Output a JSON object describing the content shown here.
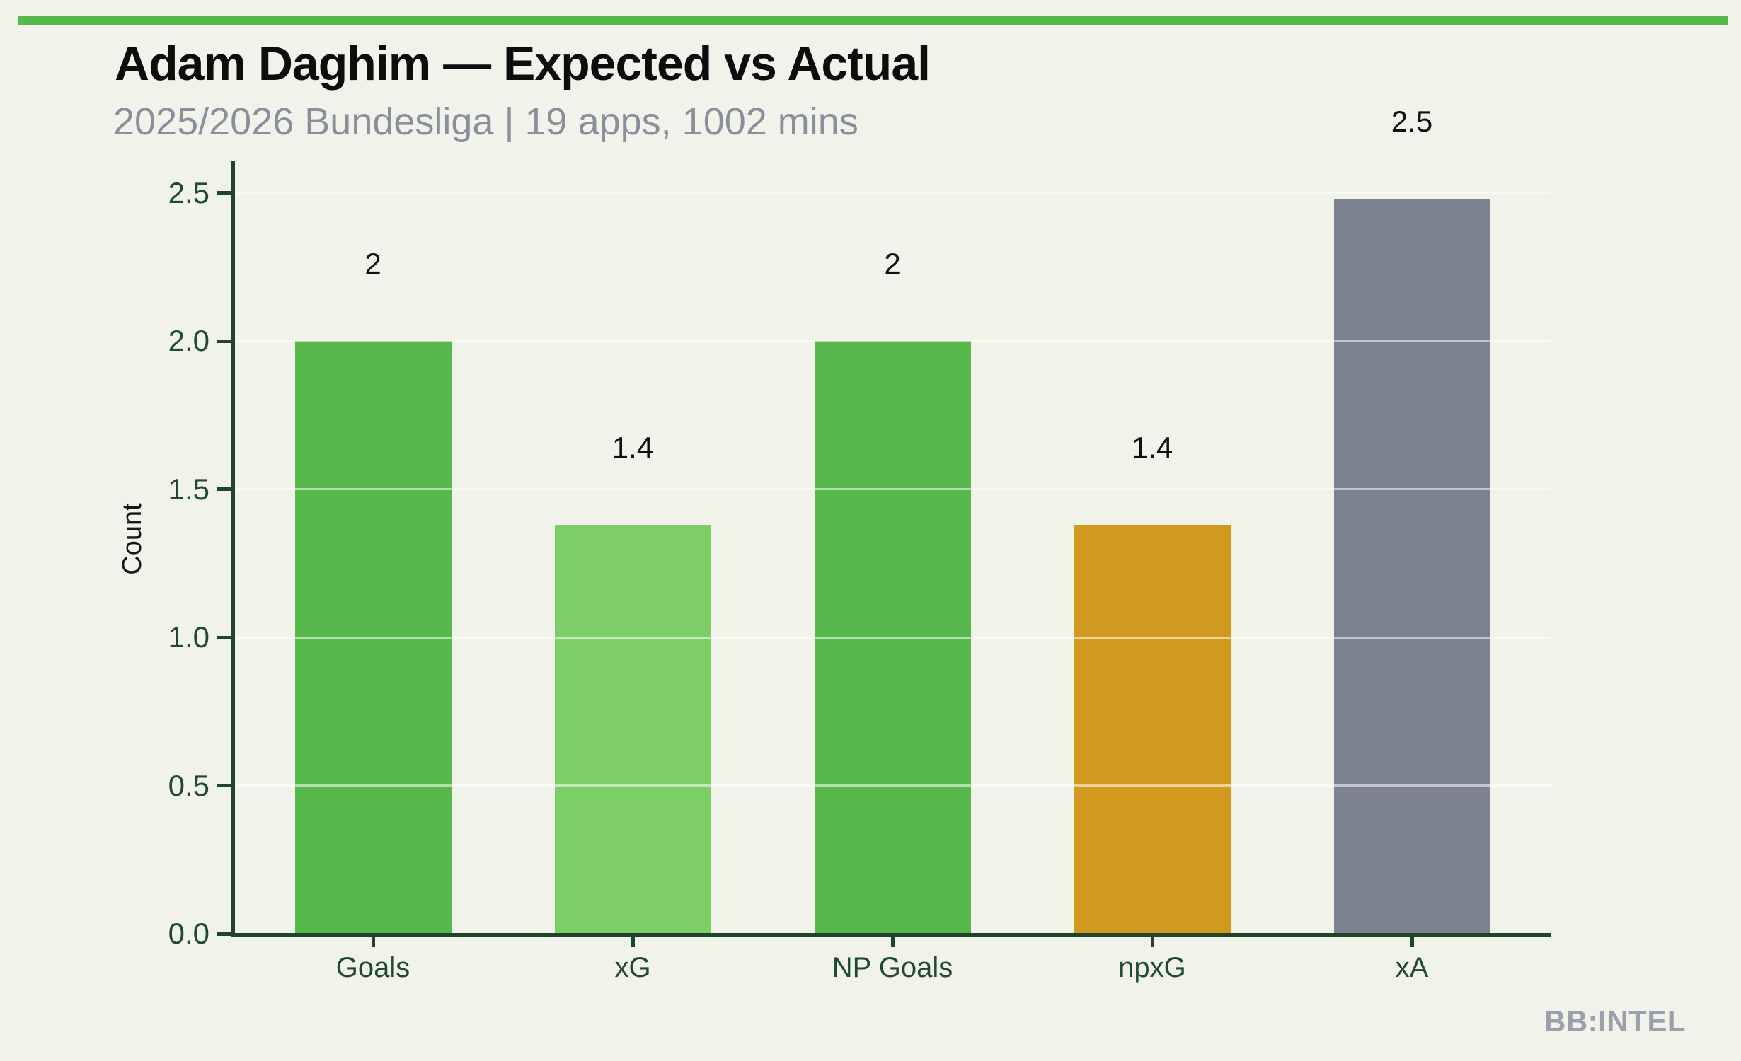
{
  "header": {
    "title": "Adam Daghim — Expected vs Actual",
    "subtitle": "2025/2026 Bundesliga | 19 apps, 1002 mins"
  },
  "watermark": "BB:INTEL",
  "colors": {
    "background": "#f1f2ea",
    "accent_bar": "#57b84b",
    "title": "#0d0d0d",
    "subtitle": "#8a909b",
    "axis": "#1e4527",
    "tick_label": "#1f4b2c",
    "value_label": "#111111",
    "y_axis_title": "#15151a",
    "gridline": "rgba(255,255,255,0.55)",
    "watermark": "#9ba1ac"
  },
  "chart_data": {
    "type": "bar",
    "title": "Adam Daghim — Expected vs Actual",
    "subtitle": "2025/2026 Bundesliga | 19 apps, 1002 mins",
    "categories": [
      "Goals",
      "xG",
      "NP Goals",
      "npxG",
      "xA"
    ],
    "values": [
      2.0,
      1.38,
      2.0,
      1.38,
      2.48
    ],
    "value_labels": [
      "2",
      "1.4",
      "2",
      "1.4",
      "2.5"
    ],
    "bar_colors": [
      "#57b84b",
      "#7ccf66",
      "#57b84b",
      "#d2991f",
      "#7d8390"
    ],
    "xlabel": "",
    "ylabel": "Count",
    "ylim": [
      0,
      2.5
    ],
    "yticks": [
      0.0,
      0.5,
      1.0,
      1.5,
      2.0,
      2.5
    ],
    "ytick_labels": [
      "0.0",
      "0.5",
      "1.0",
      "1.5",
      "2.0",
      "2.5"
    ],
    "grid": true,
    "legend_position": "none"
  }
}
